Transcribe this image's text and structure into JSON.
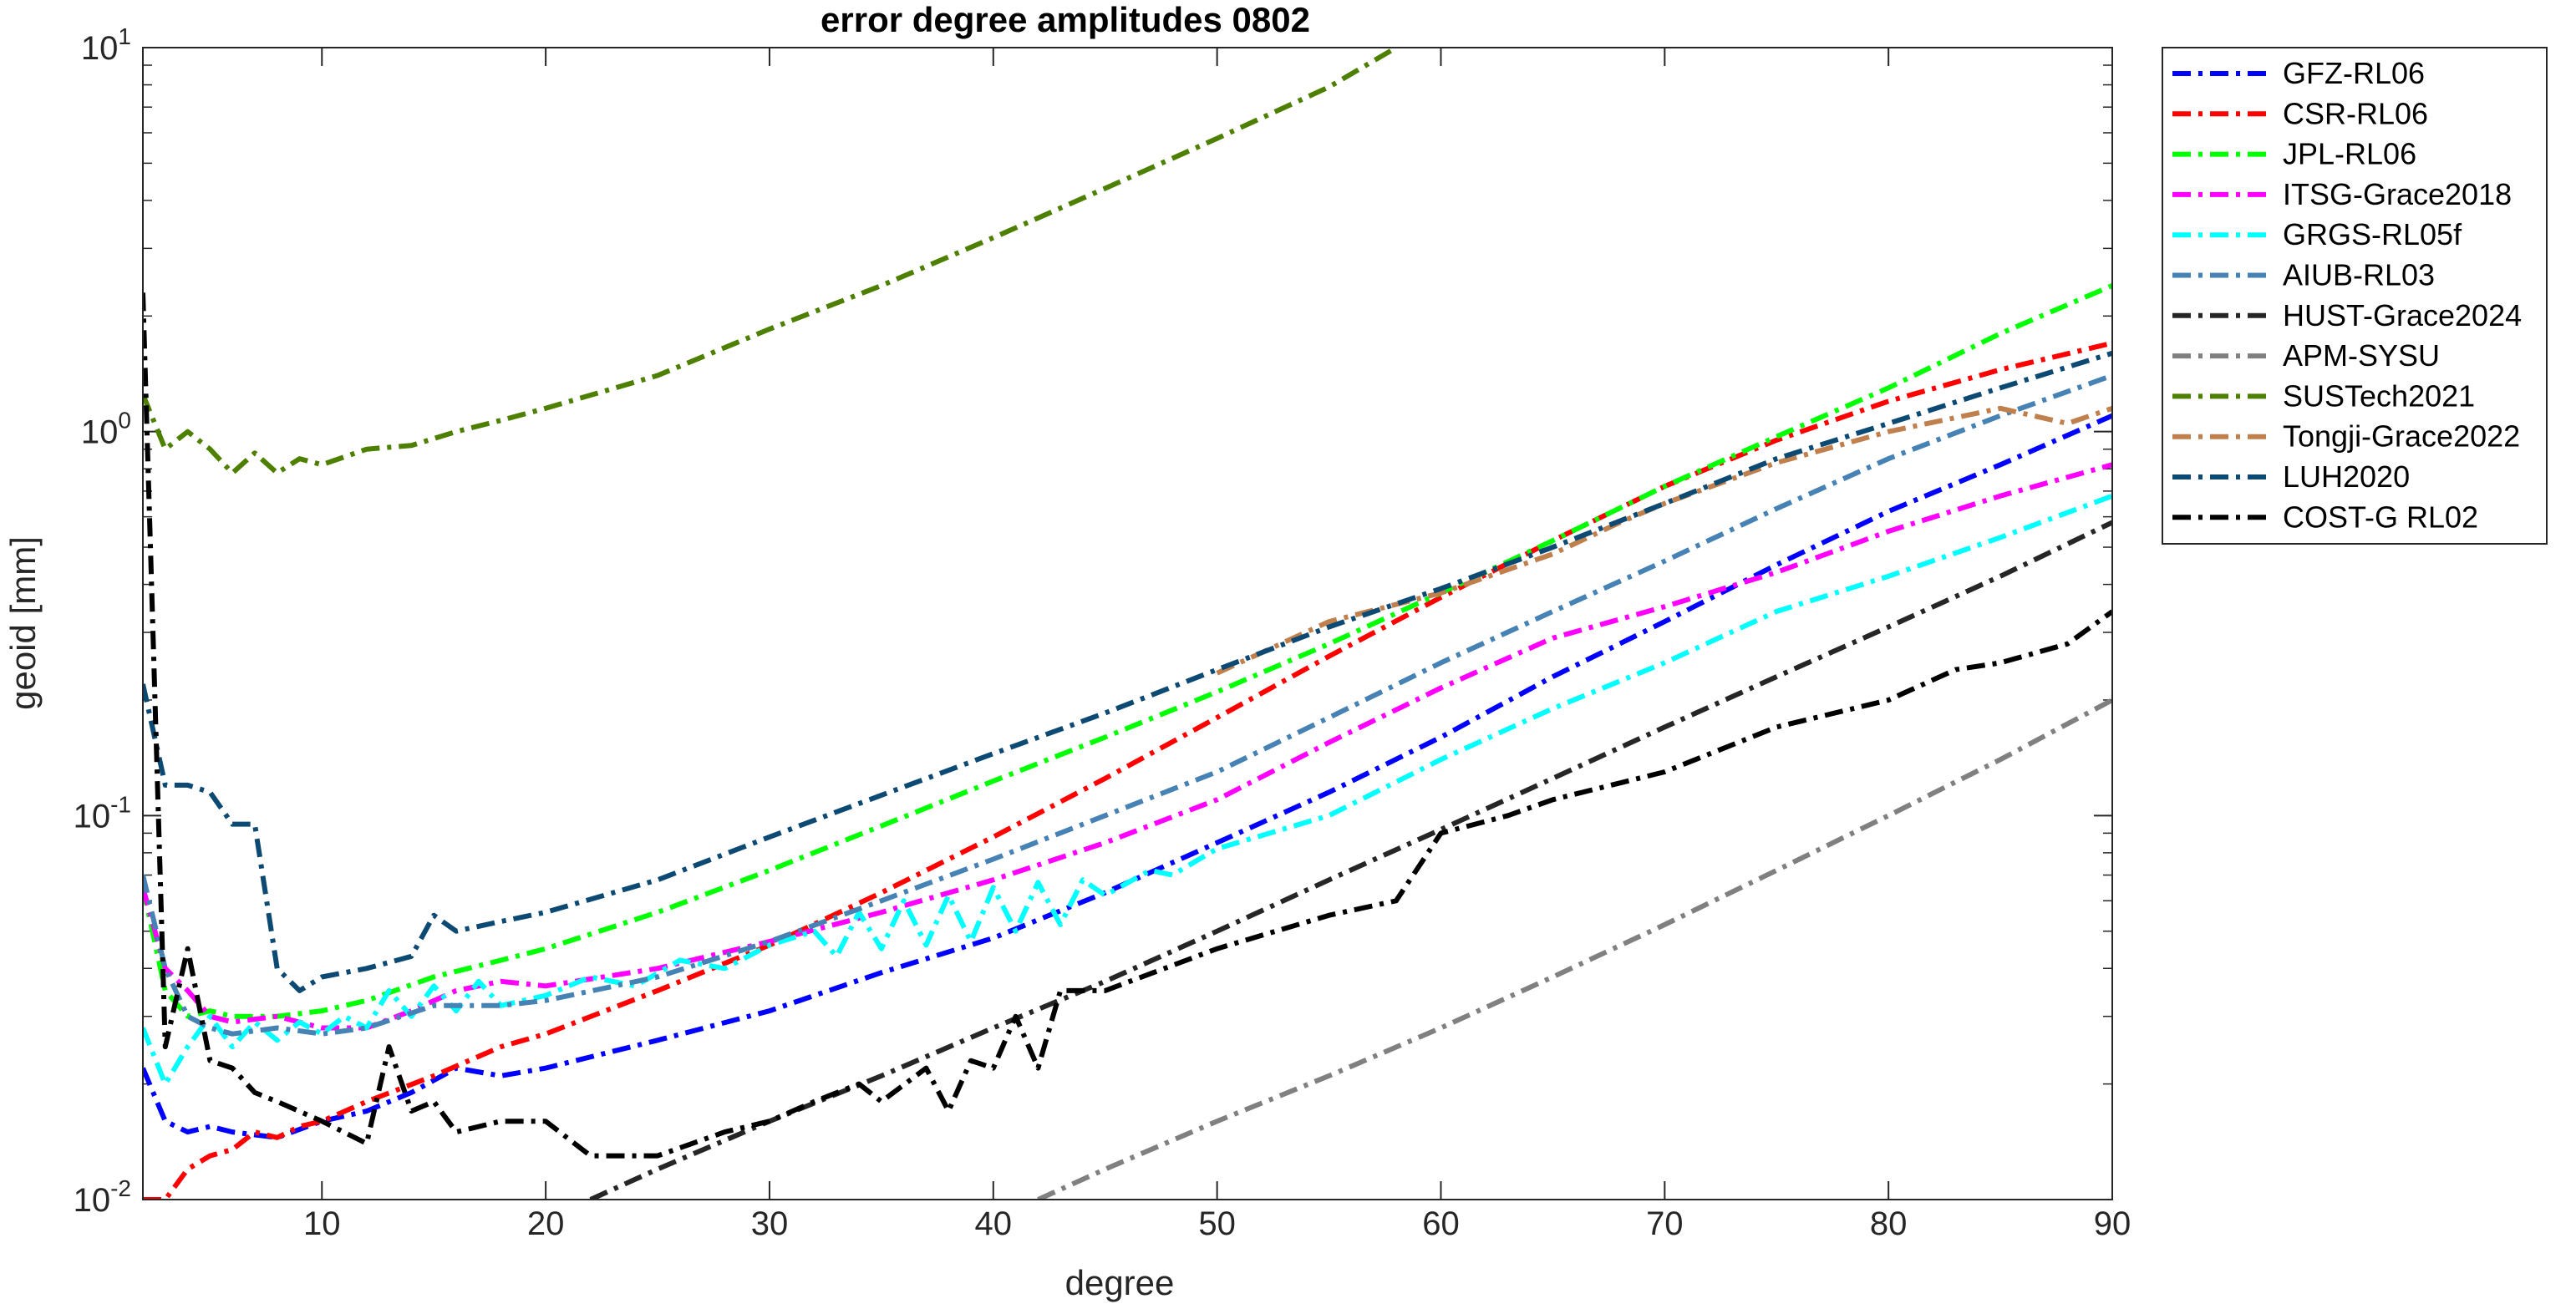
{
  "chart_data": {
    "type": "line",
    "title": "error degree amplitudes 0802",
    "xlabel": "degree",
    "ylabel": "geoid [mm]",
    "xlim": [
      2,
      90
    ],
    "ylim": [
      0.01,
      10
    ],
    "y_scale": "log",
    "x_ticks": [
      10,
      20,
      30,
      40,
      50,
      60,
      70,
      80,
      90
    ],
    "y_ticks": [
      {
        "value": 0.01,
        "base": "10",
        "exp": "-2"
      },
      {
        "value": 0.1,
        "base": "10",
        "exp": "-1"
      },
      {
        "value": 1,
        "base": "10",
        "exp": "0"
      },
      {
        "value": 10,
        "base": "10",
        "exp": "1"
      }
    ],
    "grid": false,
    "legend_position": "outside-right-top",
    "series": [
      {
        "name": "GFZ-RL06",
        "color": "#0000ff",
        "points": [
          [
            2,
            0.022
          ],
          [
            3,
            0.016
          ],
          [
            4,
            0.015
          ],
          [
            5,
            0.0155
          ],
          [
            6,
            0.015
          ],
          [
            8,
            0.0145
          ],
          [
            10,
            0.016
          ],
          [
            12,
            0.017
          ],
          [
            14,
            0.019
          ],
          [
            16,
            0.022
          ],
          [
            18,
            0.021
          ],
          [
            20,
            0.022
          ],
          [
            25,
            0.026
          ],
          [
            30,
            0.031
          ],
          [
            35,
            0.039
          ],
          [
            40,
            0.048
          ],
          [
            45,
            0.063
          ],
          [
            50,
            0.085
          ],
          [
            55,
            0.115
          ],
          [
            60,
            0.16
          ],
          [
            65,
            0.23
          ],
          [
            70,
            0.32
          ],
          [
            75,
            0.45
          ],
          [
            80,
            0.62
          ],
          [
            85,
            0.82
          ],
          [
            90,
            1.1
          ]
        ]
      },
      {
        "name": "CSR-RL06",
        "color": "#ff0000",
        "points": [
          [
            2,
            0.01
          ],
          [
            3,
            0.01
          ],
          [
            4,
            0.012
          ],
          [
            5,
            0.013
          ],
          [
            6,
            0.0135
          ],
          [
            7,
            0.015
          ],
          [
            8,
            0.0145
          ],
          [
            9,
            0.0155
          ],
          [
            10,
            0.016
          ],
          [
            12,
            0.018
          ],
          [
            15,
            0.021
          ],
          [
            18,
            0.025
          ],
          [
            20,
            0.027
          ],
          [
            25,
            0.035
          ],
          [
            30,
            0.046
          ],
          [
            35,
            0.063
          ],
          [
            40,
            0.088
          ],
          [
            45,
            0.125
          ],
          [
            50,
            0.18
          ],
          [
            55,
            0.26
          ],
          [
            60,
            0.37
          ],
          [
            65,
            0.52
          ],
          [
            70,
            0.72
          ],
          [
            75,
            0.95
          ],
          [
            80,
            1.2
          ],
          [
            85,
            1.45
          ],
          [
            90,
            1.7
          ]
        ]
      },
      {
        "name": "JPL-RL06",
        "color": "#00ff00",
        "points": [
          [
            2,
            0.065
          ],
          [
            3,
            0.035
          ],
          [
            4,
            0.03
          ],
          [
            5,
            0.031
          ],
          [
            6,
            0.03
          ],
          [
            8,
            0.03
          ],
          [
            10,
            0.031
          ],
          [
            12,
            0.033
          ],
          [
            15,
            0.038
          ],
          [
            18,
            0.042
          ],
          [
            20,
            0.045
          ],
          [
            25,
            0.056
          ],
          [
            30,
            0.072
          ],
          [
            35,
            0.094
          ],
          [
            40,
            0.123
          ],
          [
            45,
            0.16
          ],
          [
            50,
            0.21
          ],
          [
            55,
            0.28
          ],
          [
            60,
            0.38
          ],
          [
            65,
            0.52
          ],
          [
            70,
            0.72
          ],
          [
            75,
            0.97
          ],
          [
            80,
            1.3
          ],
          [
            85,
            1.8
          ],
          [
            90,
            2.4
          ]
        ]
      },
      {
        "name": "ITSG-Grace2018",
        "color": "#ff00ff",
        "points": [
          [
            2,
            0.065
          ],
          [
            3,
            0.04
          ],
          [
            4,
            0.035
          ],
          [
            5,
            0.03
          ],
          [
            6,
            0.029
          ],
          [
            8,
            0.03
          ],
          [
            10,
            0.028
          ],
          [
            12,
            0.028
          ],
          [
            14,
            0.031
          ],
          [
            16,
            0.035
          ],
          [
            18,
            0.037
          ],
          [
            20,
            0.036
          ],
          [
            25,
            0.04
          ],
          [
            30,
            0.047
          ],
          [
            35,
            0.056
          ],
          [
            40,
            0.068
          ],
          [
            45,
            0.085
          ],
          [
            50,
            0.11
          ],
          [
            55,
            0.155
          ],
          [
            60,
            0.215
          ],
          [
            65,
            0.29
          ],
          [
            70,
            0.35
          ],
          [
            75,
            0.43
          ],
          [
            80,
            0.55
          ],
          [
            85,
            0.68
          ],
          [
            90,
            0.82
          ]
        ]
      },
      {
        "name": "GRGS-RL05f",
        "color": "#00ffff",
        "points": [
          [
            2,
            0.028
          ],
          [
            3,
            0.02
          ],
          [
            4,
            0.025
          ],
          [
            5,
            0.03
          ],
          [
            6,
            0.025
          ],
          [
            7,
            0.029
          ],
          [
            8,
            0.026
          ],
          [
            9,
            0.029
          ],
          [
            10,
            0.027
          ],
          [
            11,
            0.03
          ],
          [
            12,
            0.028
          ],
          [
            13,
            0.035
          ],
          [
            14,
            0.03
          ],
          [
            15,
            0.036
          ],
          [
            16,
            0.031
          ],
          [
            17,
            0.037
          ],
          [
            18,
            0.032
          ],
          [
            20,
            0.034
          ],
          [
            22,
            0.038
          ],
          [
            24,
            0.036
          ],
          [
            26,
            0.042
          ],
          [
            28,
            0.04
          ],
          [
            30,
            0.046
          ],
          [
            32,
            0.05
          ],
          [
            33,
            0.043
          ],
          [
            34,
            0.056
          ],
          [
            35,
            0.045
          ],
          [
            36,
            0.06
          ],
          [
            37,
            0.046
          ],
          [
            38,
            0.062
          ],
          [
            39,
            0.047
          ],
          [
            40,
            0.065
          ],
          [
            41,
            0.05
          ],
          [
            42,
            0.067
          ],
          [
            43,
            0.052
          ],
          [
            44,
            0.068
          ],
          [
            45,
            0.062
          ],
          [
            47,
            0.072
          ],
          [
            48,
            0.07
          ],
          [
            50,
            0.082
          ],
          [
            55,
            0.1
          ],
          [
            60,
            0.14
          ],
          [
            65,
            0.19
          ],
          [
            70,
            0.25
          ],
          [
            75,
            0.34
          ],
          [
            80,
            0.42
          ],
          [
            85,
            0.53
          ],
          [
            90,
            0.68
          ]
        ]
      },
      {
        "name": "AIUB-RL03",
        "color": "#4682b4",
        "points": [
          [
            2,
            0.07
          ],
          [
            3,
            0.04
          ],
          [
            4,
            0.03
          ],
          [
            5,
            0.028
          ],
          [
            6,
            0.027
          ],
          [
            8,
            0.028
          ],
          [
            10,
            0.027
          ],
          [
            12,
            0.028
          ],
          [
            15,
            0.032
          ],
          [
            18,
            0.032
          ],
          [
            20,
            0.033
          ],
          [
            25,
            0.038
          ],
          [
            30,
            0.047
          ],
          [
            35,
            0.06
          ],
          [
            40,
            0.077
          ],
          [
            45,
            0.1
          ],
          [
            50,
            0.13
          ],
          [
            55,
            0.18
          ],
          [
            60,
            0.25
          ],
          [
            65,
            0.34
          ],
          [
            70,
            0.46
          ],
          [
            75,
            0.63
          ],
          [
            80,
            0.85
          ],
          [
            85,
            1.1
          ],
          [
            90,
            1.4
          ]
        ]
      },
      {
        "name": "HUST-Grace2024",
        "color": "#262626",
        "points": [
          [
            22,
            0.01
          ],
          [
            25,
            0.012
          ],
          [
            30,
            0.016
          ],
          [
            35,
            0.021
          ],
          [
            40,
            0.028
          ],
          [
            45,
            0.037
          ],
          [
            50,
            0.05
          ],
          [
            55,
            0.068
          ],
          [
            60,
            0.092
          ],
          [
            65,
            0.125
          ],
          [
            70,
            0.17
          ],
          [
            75,
            0.23
          ],
          [
            80,
            0.31
          ],
          [
            85,
            0.42
          ],
          [
            90,
            0.58
          ]
        ]
      },
      {
        "name": "APM-SYSU",
        "color": "#808080",
        "points": [
          [
            42,
            0.01
          ],
          [
            45,
            0.012
          ],
          [
            50,
            0.016
          ],
          [
            55,
            0.021
          ],
          [
            60,
            0.028
          ],
          [
            65,
            0.038
          ],
          [
            70,
            0.052
          ],
          [
            75,
            0.072
          ],
          [
            80,
            0.1
          ],
          [
            85,
            0.14
          ],
          [
            90,
            0.2
          ]
        ]
      },
      {
        "name": "SUSTech2021",
        "color": "#4d8000",
        "points": [
          [
            2,
            1.25
          ],
          [
            3,
            0.9
          ],
          [
            4,
            1.0
          ],
          [
            5,
            0.9
          ],
          [
            6,
            0.78
          ],
          [
            7,
            0.88
          ],
          [
            8,
            0.78
          ],
          [
            9,
            0.85
          ],
          [
            10,
            0.82
          ],
          [
            12,
            0.9
          ],
          [
            14,
            0.92
          ],
          [
            16,
            1.0
          ],
          [
            18,
            1.07
          ],
          [
            20,
            1.15
          ],
          [
            25,
            1.4
          ],
          [
            30,
            1.85
          ],
          [
            35,
            2.4
          ],
          [
            40,
            3.2
          ],
          [
            45,
            4.3
          ],
          [
            50,
            5.8
          ],
          [
            55,
            7.9
          ],
          [
            58,
            10
          ]
        ]
      },
      {
        "name": "Tongji-Grace2022",
        "color": "#c0804d",
        "points": [
          [
            50,
            0.235
          ],
          [
            55,
            0.32
          ],
          [
            60,
            0.38
          ],
          [
            65,
            0.48
          ],
          [
            68,
            0.58
          ],
          [
            70,
            0.65
          ],
          [
            75,
            0.83
          ],
          [
            80,
            1.0
          ],
          [
            85,
            1.15
          ],
          [
            88,
            1.05
          ],
          [
            90,
            1.15
          ]
        ]
      },
      {
        "name": "LUH2020",
        "color": "#0d4a73",
        "points": [
          [
            2,
            0.22
          ],
          [
            3,
            0.12
          ],
          [
            4,
            0.12
          ],
          [
            5,
            0.115
          ],
          [
            6,
            0.095
          ],
          [
            7,
            0.095
          ],
          [
            8,
            0.04
          ],
          [
            9,
            0.035
          ],
          [
            10,
            0.038
          ],
          [
            12,
            0.04
          ],
          [
            14,
            0.043
          ],
          [
            15,
            0.055
          ],
          [
            16,
            0.05
          ],
          [
            18,
            0.053
          ],
          [
            20,
            0.056
          ],
          [
            25,
            0.068
          ],
          [
            30,
            0.088
          ],
          [
            35,
            0.113
          ],
          [
            40,
            0.145
          ],
          [
            45,
            0.185
          ],
          [
            50,
            0.24
          ],
          [
            55,
            0.31
          ],
          [
            60,
            0.39
          ],
          [
            65,
            0.5
          ],
          [
            70,
            0.65
          ],
          [
            75,
            0.85
          ],
          [
            80,
            1.05
          ],
          [
            85,
            1.3
          ],
          [
            90,
            1.6
          ]
        ]
      },
      {
        "name": "COST-G RL02",
        "color": "#000000",
        "points": [
          [
            2,
            2.3
          ],
          [
            3,
            0.025
          ],
          [
            4,
            0.045
          ],
          [
            5,
            0.023
          ],
          [
            6,
            0.022
          ],
          [
            7,
            0.019
          ],
          [
            8,
            0.018
          ],
          [
            10,
            0.016
          ],
          [
            12,
            0.014
          ],
          [
            13,
            0.025
          ],
          [
            14,
            0.017
          ],
          [
            15,
            0.018
          ],
          [
            16,
            0.015
          ],
          [
            18,
            0.016
          ],
          [
            20,
            0.016
          ],
          [
            22,
            0.013
          ],
          [
            25,
            0.013
          ],
          [
            28,
            0.015
          ],
          [
            30,
            0.016
          ],
          [
            32,
            0.018
          ],
          [
            34,
            0.02
          ],
          [
            35,
            0.018
          ],
          [
            37,
            0.022
          ],
          [
            38,
            0.017
          ],
          [
            39,
            0.023
          ],
          [
            40,
            0.022
          ],
          [
            41,
            0.03
          ],
          [
            42,
            0.022
          ],
          [
            43,
            0.035
          ],
          [
            45,
            0.035
          ],
          [
            50,
            0.045
          ],
          [
            55,
            0.055
          ],
          [
            58,
            0.06
          ],
          [
            60,
            0.09
          ],
          [
            63,
            0.1
          ],
          [
            65,
            0.11
          ],
          [
            70,
            0.13
          ],
          [
            75,
            0.17
          ],
          [
            80,
            0.2
          ],
          [
            83,
            0.24
          ],
          [
            85,
            0.25
          ],
          [
            88,
            0.28
          ],
          [
            90,
            0.34
          ]
        ]
      }
    ]
  }
}
